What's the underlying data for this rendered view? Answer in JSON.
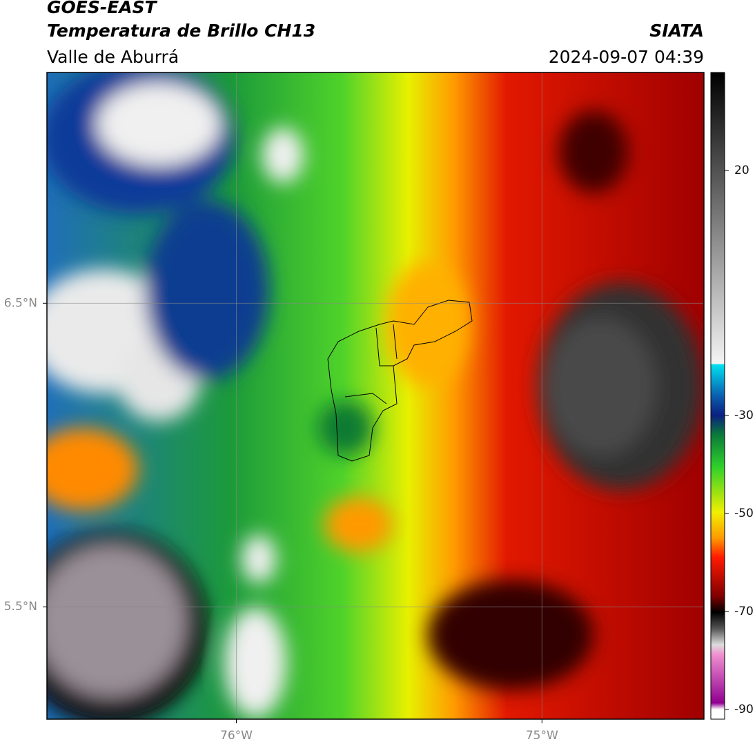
{
  "header": {
    "title": "GOES-EAST",
    "subtitle": "Temperatura de Brillo CH13",
    "region": "Valle de Aburrá",
    "agency": "SIATA",
    "timestamp": "2024-09-07 04:39"
  },
  "map": {
    "xlim": [
      -76.62,
      -74.47
    ],
    "ylim": [
      5.13,
      7.26
    ],
    "xticks": [
      {
        "value": -76,
        "label": "76°W"
      },
      {
        "value": -75,
        "label": "75°W"
      }
    ],
    "yticks": [
      {
        "value": 6.5,
        "label": "6.5°N"
      },
      {
        "value": 5.5,
        "label": "5.5°N"
      }
    ],
    "grid": true
  },
  "colorbar": {
    "lim": [
      -92,
      40
    ],
    "ticks": [
      20,
      -30,
      -50,
      -70,
      -90
    ]
  }
}
